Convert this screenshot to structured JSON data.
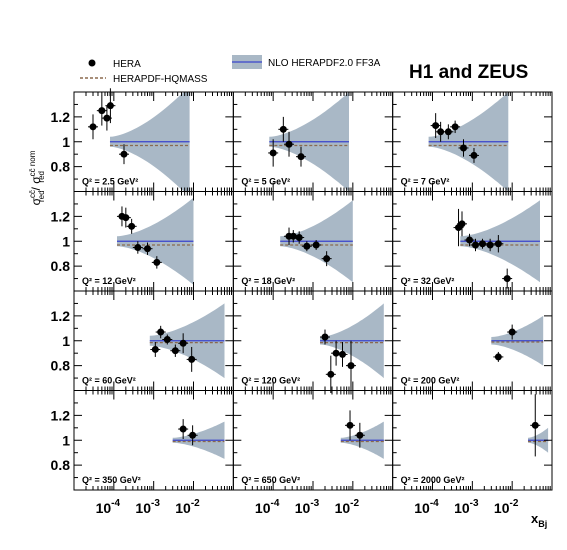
{
  "chart_data": {
    "type": "scatter",
    "collaboration": "H1 and ZEUS",
    "legend": {
      "data": "HERA",
      "model": "HERAPDF-HQMASS",
      "band": "NLO HERAPDF2.0 FF3A",
      "placement": "top"
    },
    "ylabel": "σ_red^cc̄ / σ_red^cc̄ nom",
    "ylabel_main": "σ",
    "ylabel_sup1": "cc̄",
    "ylabel_sub1": "red",
    "ylabel_sep": "/ σ",
    "ylabel_sup2": "cc̄ nom",
    "ylabel_sub2": "red",
    "xlabel": "x_Bj",
    "xlabel_main": "x",
    "xlabel_sub": "Bj",
    "xscale": "log",
    "xlim": [
      1e-05,
      0.1
    ],
    "ylim": [
      0.6,
      1.4
    ],
    "ytick_labels": [
      "0.8",
      "1",
      "1.2"
    ],
    "yticks": [
      0.8,
      1.0,
      1.2
    ],
    "xtick_labels": [
      {
        "base": "10",
        "exp": "-4"
      },
      {
        "base": "10",
        "exp": "-3"
      },
      {
        "base": "10",
        "exp": "-2"
      }
    ],
    "xticks": [
      0.0001,
      0.001,
      0.01
    ],
    "grid": false,
    "colors": {
      "band": "#a9b8c6",
      "nominal": "#3a44cc",
      "model": "#8b6a4e",
      "points": "#000000"
    },
    "panels": [
      {
        "q2_label": "Q² = 2.5 GeV²",
        "band_range": [
          8e-05,
          0.008
        ],
        "band_half_width": [
          0.04,
          0.45
        ],
        "model_ratio": [
          0.97,
          0.97
        ],
        "points": [
          {
            "x": 3e-05,
            "y": 1.12,
            "err": 0.1
          },
          {
            "x": 5e-05,
            "y": 1.25,
            "err": 0.12
          },
          {
            "x": 6.7e-05,
            "y": 1.19,
            "err": 0.1
          },
          {
            "x": 8.2e-05,
            "y": 1.29,
            "err": 0.14
          },
          {
            "x": 0.00018,
            "y": 0.9,
            "err": 0.08
          }
        ]
      },
      {
        "q2_label": "Q² = 5 GeV²",
        "band_range": [
          8e-05,
          0.008
        ],
        "band_half_width": [
          0.04,
          0.4
        ],
        "model_ratio": [
          0.97,
          0.97
        ],
        "points": [
          {
            "x": 0.0001,
            "y": 0.91,
            "err": 0.11
          },
          {
            "x": 0.00018,
            "y": 1.1,
            "err": 0.1
          },
          {
            "x": 0.00025,
            "y": 0.98,
            "err": 0.1
          },
          {
            "x": 0.0005,
            "y": 0.88,
            "err": 0.08
          }
        ]
      },
      {
        "q2_label": "Q² = 7 GeV²",
        "band_range": [
          8e-05,
          0.008
        ],
        "band_half_width": [
          0.04,
          0.4
        ],
        "model_ratio": [
          0.97,
          0.97
        ],
        "points": [
          {
            "x": 0.00012,
            "y": 1.13,
            "err": 0.1
          },
          {
            "x": 0.00016,
            "y": 1.08,
            "err": 0.08
          },
          {
            "x": 0.00025,
            "y": 1.08,
            "err": 0.06
          },
          {
            "x": 0.00037,
            "y": 1.12,
            "err": 0.05
          },
          {
            "x": 0.0006,
            "y": 0.95,
            "err": 0.07
          },
          {
            "x": 0.0011,
            "y": 0.89,
            "err": 0.06
          }
        ]
      },
      {
        "q2_label": "Q² = 12 GeV²",
        "band_range": [
          0.00012,
          0.01
        ],
        "band_half_width": [
          0.04,
          0.35
        ],
        "model_ratio": [
          0.97,
          0.97
        ],
        "points": [
          {
            "x": 0.00016,
            "y": 1.2,
            "err": 0.08
          },
          {
            "x": 0.0002,
            "y": 1.19,
            "err": 0.08
          },
          {
            "x": 0.00028,
            "y": 1.12,
            "err": 0.06
          },
          {
            "x": 0.0004,
            "y": 0.95,
            "err": 0.05
          },
          {
            "x": 0.0007,
            "y": 0.94,
            "err": 0.05
          },
          {
            "x": 0.0012,
            "y": 0.83,
            "err": 0.05
          }
        ]
      },
      {
        "q2_label": "Q² = 18 GeV²",
        "band_range": [
          0.00015,
          0.01
        ],
        "band_half_width": [
          0.04,
          0.33
        ],
        "model_ratio": [
          0.97,
          0.97
        ],
        "points": [
          {
            "x": 0.00025,
            "y": 1.04,
            "err": 0.07
          },
          {
            "x": 0.00032,
            "y": 1.04,
            "err": 0.05
          },
          {
            "x": 0.00045,
            "y": 1.03,
            "err": 0.05
          },
          {
            "x": 0.0007,
            "y": 0.96,
            "err": 0.04
          },
          {
            "x": 0.0012,
            "y": 0.97,
            "err": 0.04
          },
          {
            "x": 0.0022,
            "y": 0.86,
            "err": 0.06
          }
        ]
      },
      {
        "q2_label": "Q² = 32 GeV²",
        "band_range": [
          0.0005,
          0.05
        ],
        "band_half_width": [
          0.04,
          0.33
        ],
        "model_ratio": [
          0.97,
          0.97
        ],
        "points": [
          {
            "x": 0.00045,
            "y": 1.11,
            "err": 0.15
          },
          {
            "x": 0.00055,
            "y": 1.14,
            "err": 0.1
          },
          {
            "x": 0.00085,
            "y": 1.01,
            "err": 0.05
          },
          {
            "x": 0.0012,
            "y": 0.97,
            "err": 0.05
          },
          {
            "x": 0.0018,
            "y": 0.98,
            "err": 0.04
          },
          {
            "x": 0.0028,
            "y": 0.97,
            "err": 0.05
          },
          {
            "x": 0.0045,
            "y": 0.98,
            "err": 0.07
          },
          {
            "x": 0.0075,
            "y": 0.7,
            "err": 0.08
          }
        ]
      },
      {
        "q2_label": "Q² = 60 GeV²",
        "band_range": [
          0.0008,
          0.06
        ],
        "band_half_width": [
          0.04,
          0.3
        ],
        "model_ratio": [
          0.985,
          0.985
        ],
        "points": [
          {
            "x": 0.0011,
            "y": 0.93,
            "err": 0.06
          },
          {
            "x": 0.0015,
            "y": 1.07,
            "err": 0.05
          },
          {
            "x": 0.0022,
            "y": 1.01,
            "err": 0.04
          },
          {
            "x": 0.0035,
            "y": 0.92,
            "err": 0.05
          },
          {
            "x": 0.0055,
            "y": 0.98,
            "err": 0.08
          },
          {
            "x": 0.009,
            "y": 0.85,
            "err": 0.1
          }
        ]
      },
      {
        "q2_label": "Q² = 120 GeV²",
        "band_range": [
          0.0015,
          0.06
        ],
        "band_half_width": [
          0.03,
          0.3
        ],
        "model_ratio": [
          0.985,
          0.985
        ],
        "points": [
          {
            "x": 0.002,
            "y": 1.03,
            "err": 0.06
          },
          {
            "x": 0.0028,
            "y": 0.73,
            "err": 0.15
          },
          {
            "x": 0.0038,
            "y": 0.9,
            "err": 0.1
          },
          {
            "x": 0.0055,
            "y": 0.89,
            "err": 0.1
          },
          {
            "x": 0.009,
            "y": 0.8,
            "err": 0.2
          }
        ]
      },
      {
        "q2_label": "Q² = 200 GeV²",
        "band_range": [
          0.003,
          0.06
        ],
        "band_half_width": [
          0.03,
          0.2
        ],
        "model_ratio": [
          0.99,
          0.99
        ],
        "points": [
          {
            "x": 0.0045,
            "y": 0.87,
            "err": 0.04
          },
          {
            "x": 0.01,
            "y": 1.07,
            "err": 0.06
          }
        ]
      },
      {
        "q2_label": "Q² = 350 GeV²",
        "band_range": [
          0.003,
          0.06
        ],
        "band_half_width": [
          0.02,
          0.15
        ],
        "model_ratio": [
          0.99,
          0.99
        ],
        "points": [
          {
            "x": 0.0055,
            "y": 1.09,
            "err": 0.08
          },
          {
            "x": 0.0095,
            "y": 1.04,
            "err": 0.08
          }
        ]
      },
      {
        "q2_label": "Q² = 650 GeV²",
        "band_range": [
          0.005,
          0.06
        ],
        "band_half_width": [
          0.02,
          0.15
        ],
        "model_ratio": [
          0.99,
          0.99
        ],
        "points": [
          {
            "x": 0.0085,
            "y": 1.12,
            "err": 0.12
          },
          {
            "x": 0.015,
            "y": 1.04,
            "err": 0.1
          }
        ]
      },
      {
        "q2_label": "Q² = 2000 GeV²",
        "band_range": [
          0.025,
          0.08
        ],
        "band_half_width": [
          0.02,
          0.1
        ],
        "model_ratio": [
          0.99,
          0.99
        ],
        "points": [
          {
            "x": 0.038,
            "y": 1.12,
            "err": 0.25
          }
        ]
      }
    ]
  }
}
